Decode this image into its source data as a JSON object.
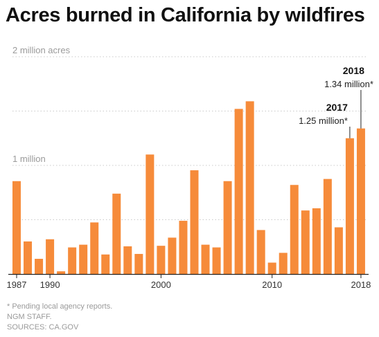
{
  "title": "Acres burned in California by wildfires",
  "chart_data": {
    "type": "bar",
    "title": "Acres burned in California by wildfires",
    "xlabel": "",
    "ylabel": "",
    "ylim": [
      0,
      2000000
    ],
    "grid": true,
    "y_gridlines": [
      {
        "value": 2000000,
        "label": "2 million acres"
      },
      {
        "value": 1500000,
        "label": ""
      },
      {
        "value": 1000000,
        "label": "1 million"
      },
      {
        "value": 500000,
        "label": ""
      }
    ],
    "x_tick_labels": [
      {
        "year": 1987,
        "label": "1987"
      },
      {
        "year": 1990,
        "label": "1990"
      },
      {
        "year": 2000,
        "label": "2000"
      },
      {
        "year": 2010,
        "label": "2010"
      },
      {
        "year": 2018,
        "label": "2018"
      }
    ],
    "categories": [
      1987,
      1988,
      1989,
      1990,
      1991,
      1992,
      1993,
      1994,
      1995,
      1996,
      1997,
      1998,
      1999,
      2000,
      2001,
      2002,
      2003,
      2004,
      2005,
      2006,
      2007,
      2008,
      2009,
      2010,
      2011,
      2012,
      2013,
      2014,
      2015,
      2016,
      2017,
      2018
    ],
    "values": [
      855000,
      300000,
      140000,
      320000,
      25000,
      245000,
      270000,
      475000,
      180000,
      740000,
      255000,
      185000,
      1100000,
      260000,
      335000,
      490000,
      955000,
      270000,
      245000,
      855000,
      1520000,
      1590000,
      405000,
      105000,
      195000,
      820000,
      585000,
      605000,
      875000,
      430000,
      1250000,
      1340000
    ],
    "annotations": [
      {
        "year": 2017,
        "label": "2017",
        "value_text": "1.25 million*"
      },
      {
        "year": 2018,
        "label": "2018",
        "value_text": "1.34 million*"
      }
    ],
    "bar_color": "#f68b3a"
  },
  "footer": {
    "note": "* Pending local agency reports.",
    "staff": "NGM STAFF.",
    "sources": "SOURCES: CA.GOV"
  }
}
